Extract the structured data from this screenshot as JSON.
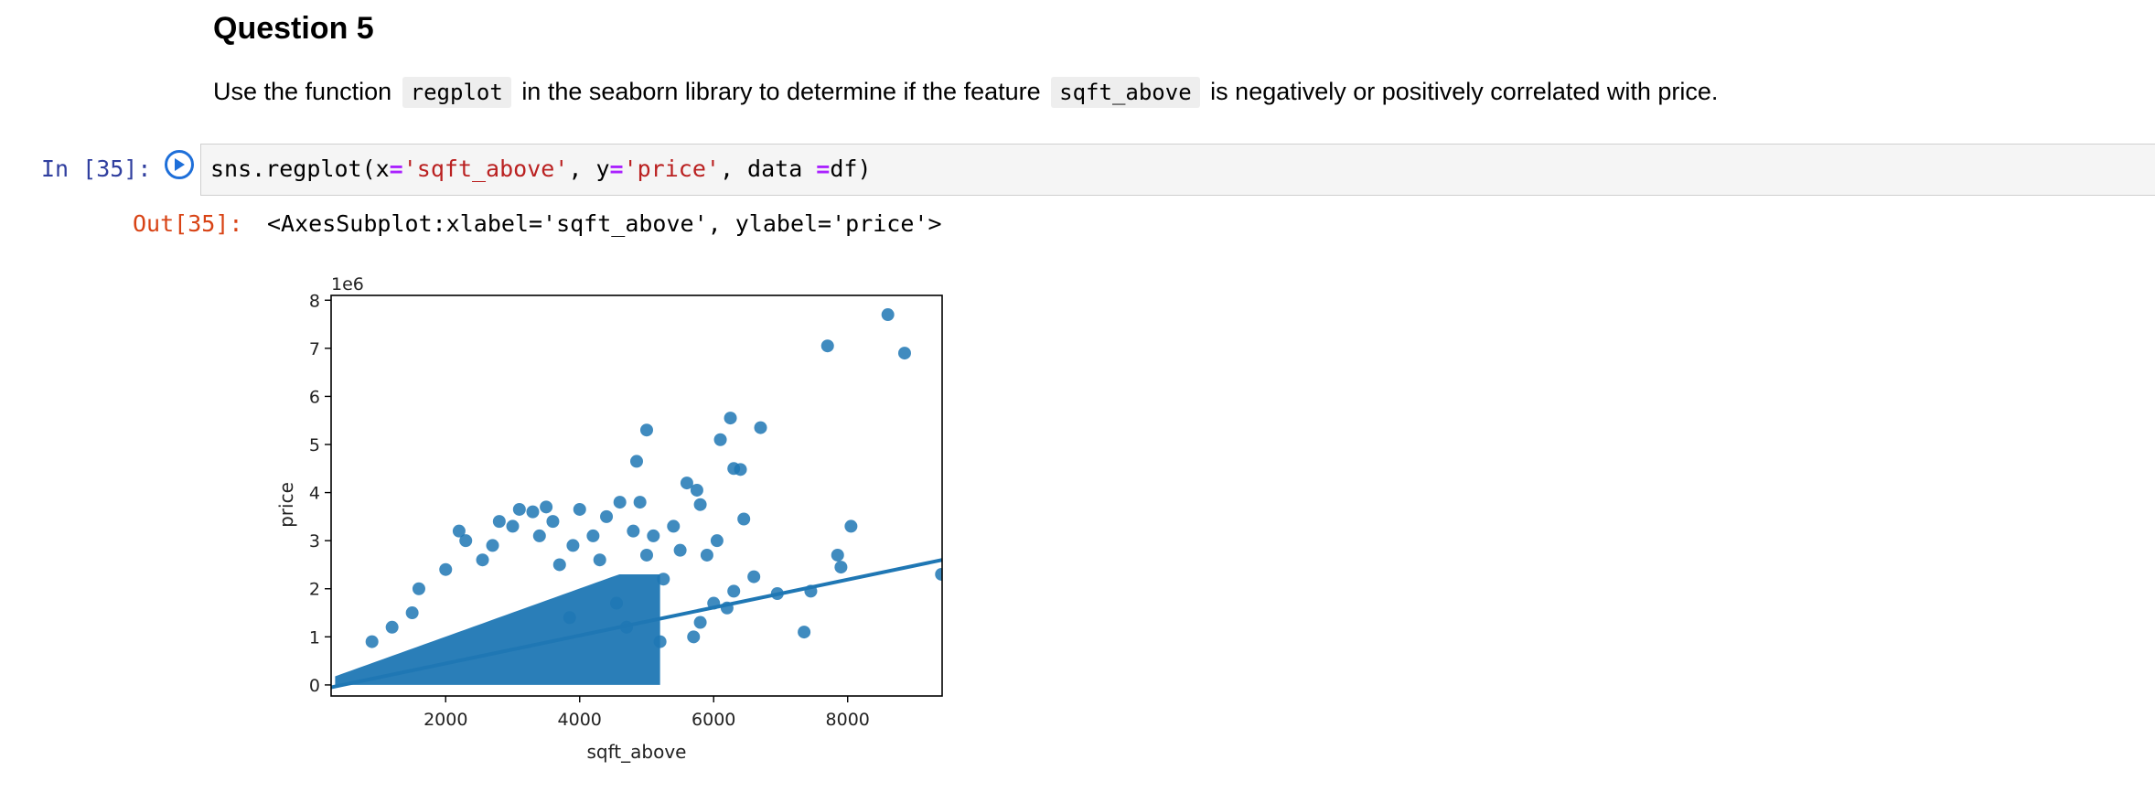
{
  "markdown": {
    "title": "Question 5",
    "text_1": "Use the function",
    "code_1": "regplot",
    "text_2": "in the seaborn library to determine if the feature",
    "code_2": "sqft_above",
    "text_3": "is negatively or positively correlated with price."
  },
  "input_cell": {
    "prompt": "In [35]:",
    "run_icon": "play-circle-icon",
    "code": {
      "t1": "sns.regplot(x",
      "t2": "=",
      "t3": "'sqft_above'",
      "t4": ", y",
      "t5": "=",
      "t6": "'price'",
      "t7": ", data ",
      "t8": "=",
      "t9": "df)"
    }
  },
  "output_cell": {
    "prompt": "Out[35]:",
    "text": "<AxesSubplot:xlabel='sqft_above', ylabel='price'>"
  },
  "colors": {
    "points": "#1f77b4",
    "run_icon": "#1e6fd9",
    "in_prompt": "#303f9f",
    "out_prompt": "#d84315"
  },
  "chart_data": {
    "type": "scatter",
    "xlabel": "sqft_above",
    "ylabel": "price",
    "offset_text": "1e6",
    "xlim": [
      290,
      9410
    ],
    "ylim": [
      -230000,
      8100000
    ],
    "xticks": [
      2000,
      4000,
      6000,
      8000
    ],
    "xtick_labels": [
      "2000",
      "4000",
      "6000",
      "8000"
    ],
    "yticks": [
      0,
      1000000,
      2000000,
      3000000,
      4000000,
      5000000,
      6000000,
      7000000,
      8000000
    ],
    "ytick_labels": [
      "0",
      "1",
      "2",
      "3",
      "4",
      "5",
      "6",
      "7",
      "8"
    ],
    "grid": false,
    "regression_line": {
      "x": [
        290,
        9410
      ],
      "y": [
        -50000,
        2600000
      ]
    },
    "points": [
      [
        8600,
        7700000
      ],
      [
        7700,
        7050000
      ],
      [
        8850,
        6900000
      ],
      [
        6250,
        5550000
      ],
      [
        6700,
        5350000
      ],
      [
        5000,
        5300000
      ],
      [
        6100,
        5100000
      ],
      [
        4850,
        4650000
      ],
      [
        6300,
        4500000
      ],
      [
        6400,
        4480000
      ],
      [
        5600,
        4200000
      ],
      [
        5750,
        4050000
      ],
      [
        4900,
        3800000
      ],
      [
        5800,
        3750000
      ],
      [
        3100,
        3650000
      ],
      [
        3500,
        3700000
      ],
      [
        4600,
        3800000
      ],
      [
        3300,
        3600000
      ],
      [
        4000,
        3650000
      ],
      [
        2800,
        3400000
      ],
      [
        3600,
        3400000
      ],
      [
        2200,
        3200000
      ],
      [
        6450,
        3450000
      ],
      [
        8050,
        3300000
      ],
      [
        4800,
        3200000
      ],
      [
        5100,
        3100000
      ],
      [
        6050,
        3000000
      ],
      [
        7850,
        2700000
      ],
      [
        7900,
        2450000
      ],
      [
        5500,
        2800000
      ],
      [
        5900,
        2700000
      ],
      [
        6600,
        2250000
      ],
      [
        9400,
        2300000
      ],
      [
        7450,
        1950000
      ],
      [
        6950,
        1900000
      ],
      [
        6300,
        1950000
      ],
      [
        5250,
        2200000
      ],
      [
        6000,
        1700000
      ],
      [
        6200,
        1600000
      ],
      [
        7350,
        1100000
      ],
      [
        5800,
        1300000
      ],
      [
        5700,
        1000000
      ],
      [
        5200,
        900000
      ],
      [
        4550,
        1700000
      ],
      [
        4300,
        2600000
      ],
      [
        3900,
        2900000
      ],
      [
        3700,
        2500000
      ],
      [
        2550,
        2600000
      ],
      [
        2000,
        2400000
      ],
      [
        1600,
        2000000
      ],
      [
        1500,
        1500000
      ],
      [
        1200,
        1200000
      ],
      [
        900,
        900000
      ],
      [
        2300,
        3000000
      ],
      [
        2700,
        2900000
      ],
      [
        3000,
        3300000
      ],
      [
        3400,
        3100000
      ],
      [
        4200,
        3100000
      ],
      [
        4400,
        3500000
      ],
      [
        5400,
        3300000
      ],
      [
        5000,
        2700000
      ],
      [
        3850,
        1400000
      ],
      [
        4700,
        1200000
      ]
    ],
    "density_band": {
      "x_start": 350,
      "x_end": 5200
    }
  }
}
